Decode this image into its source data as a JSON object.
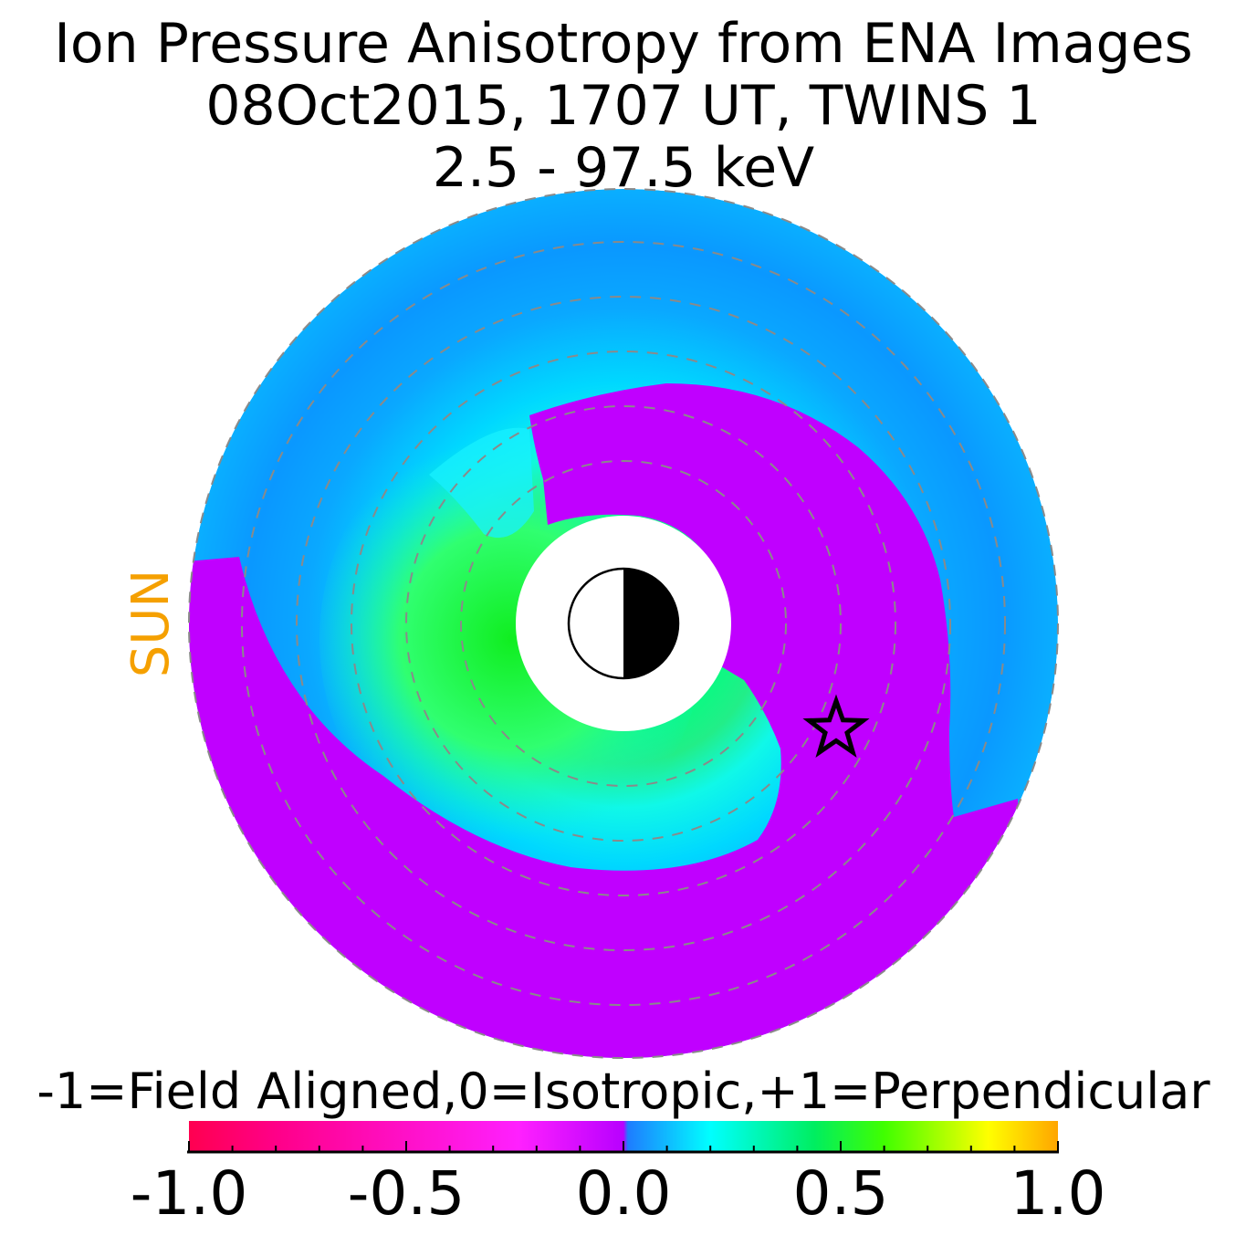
{
  "chart_data": {
    "type": "heatmap",
    "title": [
      "Ion Pressure Anisotropy from  ENA Images",
      "08Oct2015, 1707 UT,  TWINS 1",
      "2.5 - 97.5 keV"
    ],
    "sun_label": "SUN",
    "colorbar_label": "-1=Field Aligned,0=Isotropic,+1=Perpendicular",
    "colorbar_ticks": [
      "-1.0",
      "-0.5",
      "0.0",
      "0.5",
      "1.0"
    ],
    "colorbar_range": [
      -1.0,
      1.0
    ],
    "colors": {
      "sun": "#f5a000",
      "field_aligned": "#ff0050",
      "isotropic_neg": "#c000ff",
      "isotropic_pos": "#1e90ff",
      "perp_mid": "#00ffff",
      "perp_strong": "#00ee00",
      "perp_max": "#ffa500",
      "grid_ring": "#8a8a8a"
    },
    "regions": [
      {
        "name": "outer-blue-ring",
        "value": 0.05
      },
      {
        "name": "inner-green-crescent",
        "value": 0.5
      },
      {
        "name": "purple-spiral",
        "value": 0.0
      }
    ]
  }
}
